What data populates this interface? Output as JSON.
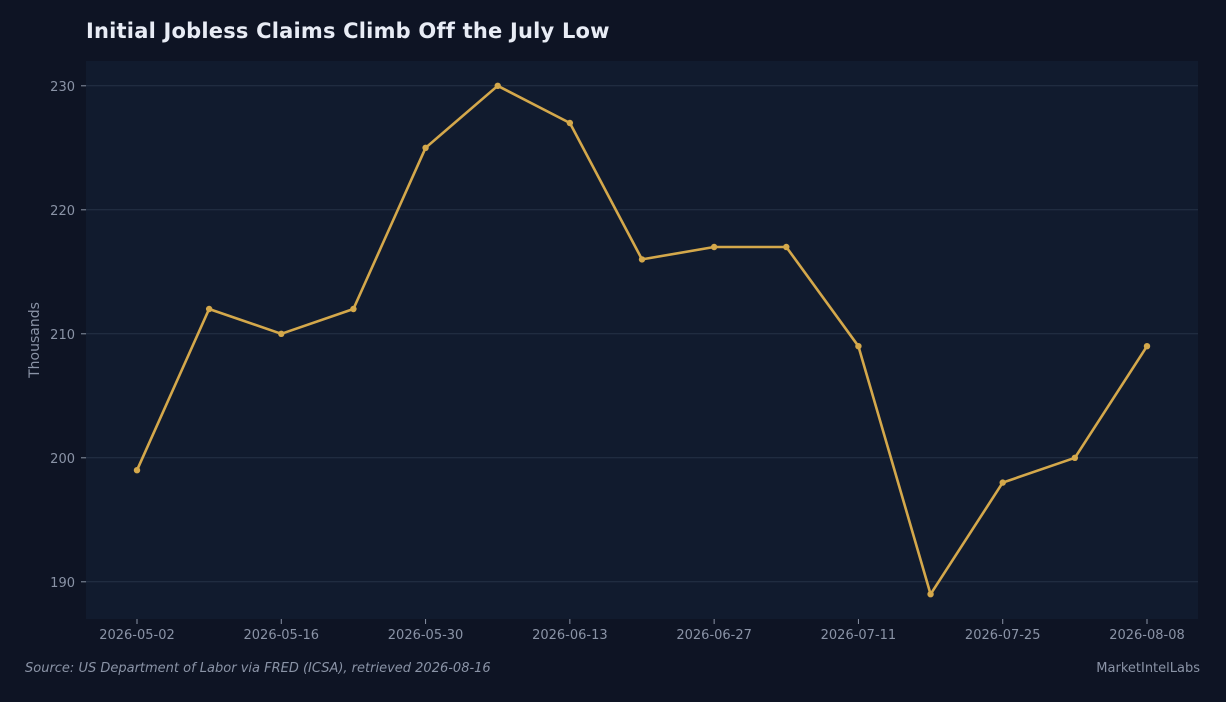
{
  "chart_data": {
    "type": "line",
    "title": "Initial Jobless Claims Climb Off the July Low",
    "xlabel": "",
    "ylabel": "Thousands",
    "x": [
      "2026-05-02",
      "2026-05-09",
      "2026-05-16",
      "2026-05-23",
      "2026-05-30",
      "2026-06-06",
      "2026-06-13",
      "2026-06-20",
      "2026-06-27",
      "2026-07-04",
      "2026-07-11",
      "2026-07-18",
      "2026-07-25",
      "2026-08-01",
      "2026-08-08"
    ],
    "series": [
      {
        "values": [
          199,
          212,
          210,
          212,
          225,
          230,
          227,
          216,
          217,
          217,
          209,
          189,
          198,
          200,
          209
        ],
        "color": "#d4a84b"
      }
    ],
    "xticks": [
      "2026-05-02",
      "2026-05-16",
      "2026-05-30",
      "2026-06-13",
      "2026-06-27",
      "2026-07-11",
      "2026-07-25",
      "2026-08-08"
    ],
    "yticks": [
      190,
      200,
      210,
      220,
      230
    ],
    "ylim": [
      187,
      232
    ],
    "grid": true,
    "legend": "none"
  },
  "footer": {
    "source": "Source: US Department of Labor via FRED (ICSA), retrieved 2026-08-16",
    "brand": "MarketIntelLabs"
  },
  "colors": {
    "background": "#0e1424",
    "plot_background": "#111b2e",
    "grid": "#263247",
    "line": "#d4a84b",
    "text": "#8a93a6",
    "title": "#e8ecf5"
  }
}
